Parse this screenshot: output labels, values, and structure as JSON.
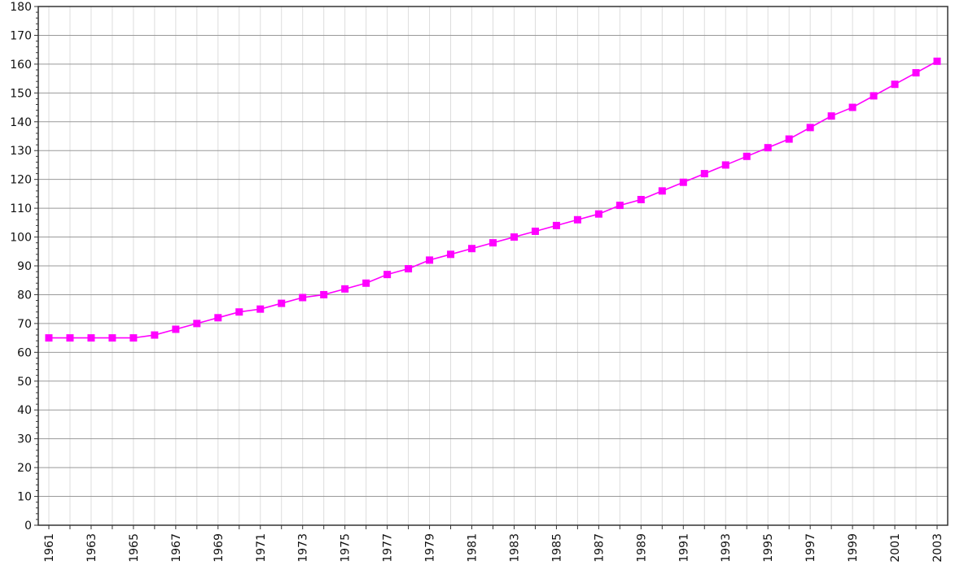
{
  "chart_data": {
    "type": "line",
    "title": "",
    "xlabel": "",
    "ylabel": "",
    "x": [
      1961,
      1962,
      1963,
      1964,
      1965,
      1966,
      1967,
      1968,
      1969,
      1970,
      1971,
      1972,
      1973,
      1974,
      1975,
      1976,
      1977,
      1978,
      1979,
      1980,
      1981,
      1982,
      1983,
      1984,
      1985,
      1986,
      1987,
      1988,
      1989,
      1990,
      1991,
      1992,
      1993,
      1994,
      1995,
      1996,
      1997,
      1998,
      1999,
      2000,
      2001,
      2002,
      2003
    ],
    "series": [
      {
        "color": "#ff00ff",
        "marker": "square",
        "values": [
          65,
          65,
          65,
          65,
          65,
          66,
          68,
          70,
          72,
          74,
          75,
          77,
          79,
          80,
          82,
          84,
          87,
          89,
          92,
          94,
          96,
          98,
          100,
          102,
          104,
          106,
          108,
          111,
          113,
          116,
          119,
          122,
          125,
          128,
          131,
          134,
          138,
          142,
          145,
          149,
          153,
          157,
          161
        ]
      }
    ],
    "xlim": [
      1961,
      2003
    ],
    "ylim": [
      0,
      180
    ],
    "x_tick_labels": [
      "1961",
      "1963",
      "1965",
      "1967",
      "1969",
      "1971",
      "1973",
      "1975",
      "1977",
      "1979",
      "1981",
      "1983",
      "1985",
      "1987",
      "1989",
      "1991",
      "1993",
      "1995",
      "1997",
      "1999",
      "2001",
      "2003"
    ],
    "y_tick_labels": [
      "0",
      "10",
      "20",
      "30",
      "40",
      "50",
      "60",
      "70",
      "80",
      "90",
      "100",
      "110",
      "120",
      "130",
      "140",
      "150",
      "160",
      "170",
      "180"
    ],
    "grid": true,
    "legend": "none"
  }
}
